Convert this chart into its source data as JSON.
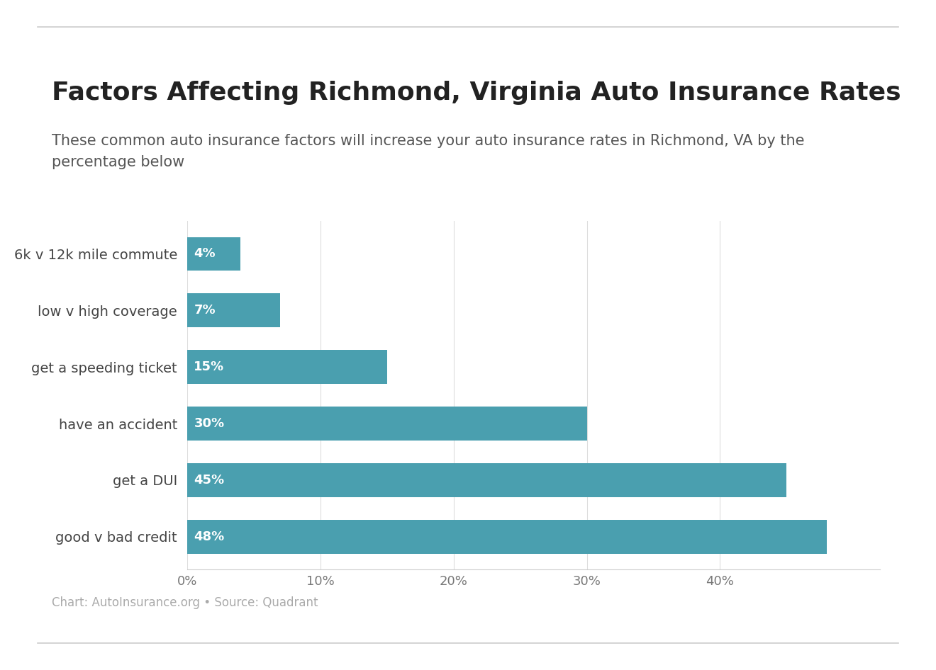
{
  "title": "Factors Affecting Richmond, Virginia Auto Insurance Rates",
  "subtitle": "These common auto insurance factors will increase your auto insurance rates in Richmond, VA by the\npercentage below",
  "categories": [
    "6k v 12k mile commute",
    "low v high coverage",
    "get a speeding ticket",
    "have an accident",
    "get a DUI",
    "good v bad credit"
  ],
  "values": [
    4,
    7,
    15,
    30,
    45,
    48
  ],
  "labels": [
    "4%",
    "7%",
    "15%",
    "30%",
    "45%",
    "48%"
  ],
  "bar_color": "#4a9faf",
  "background_color": "#ffffff",
  "title_fontsize": 26,
  "subtitle_fontsize": 15,
  "label_fontsize": 13,
  "tick_fontsize": 13,
  "category_fontsize": 14,
  "footnote": "Chart: AutoInsurance.org • Source: Quadrant",
  "footnote_fontsize": 12,
  "xlim": [
    0,
    52
  ],
  "xticks": [
    0,
    10,
    20,
    30,
    40
  ],
  "xticklabels": [
    "0%",
    "10%",
    "20%",
    "30%",
    "40%"
  ]
}
